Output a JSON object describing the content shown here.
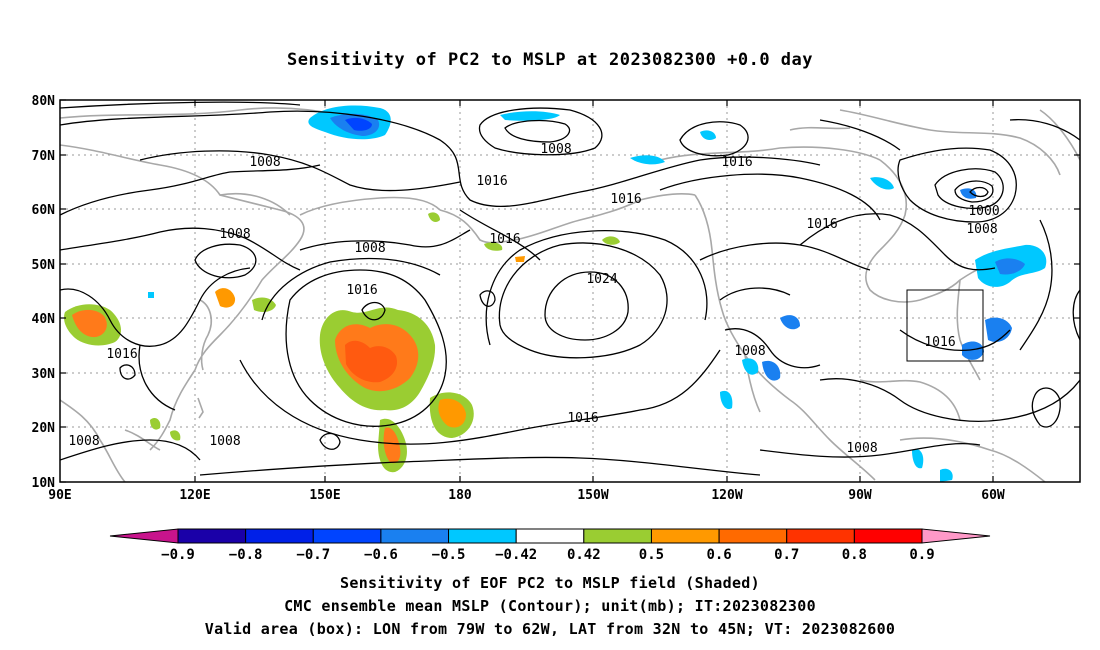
{
  "title": "Sensitivity of PC2 to MSLP at 2023082300 +0.0 day",
  "map": {
    "lon_range": [
      "90E",
      "30W"
    ],
    "lat_range": [
      "10N",
      "80N"
    ],
    "lat_labels": [
      "80N",
      "70N",
      "60N",
      "50N",
      "40N",
      "30N",
      "20N",
      "10N"
    ],
    "lon_labels": [
      "90E",
      "120E",
      "150E",
      "180",
      "150W",
      "120W",
      "90W",
      "60W"
    ],
    "gridlines": "dotted",
    "contour_labels": [
      "1008",
      "1016",
      "1016",
      "1008",
      "1016",
      "1016",
      "1016",
      "1008",
      "1008",
      "1016",
      "1024",
      "1016",
      "1016",
      "1008",
      "1008",
      "1008",
      "1000",
      "1008",
      "1016",
      "1008"
    ],
    "valid_box": {
      "lon_from": "79W",
      "lon_to": "62W",
      "lat_from": "32N",
      "lat_to": "45N"
    }
  },
  "colorbar": {
    "labels": [
      "-0.9",
      "-0.8",
      "-0.7",
      "-0.6",
      "-0.5",
      "-0.42",
      "0.42",
      "0.5",
      "0.6",
      "0.7",
      "0.8",
      "0.9"
    ],
    "colors": [
      "#1a00a8",
      "#0020e8",
      "#0044ff",
      "#1a80f0",
      "#00c8ff",
      "#ffffff",
      "#9acd32",
      "#ff9900",
      "#ff6a00",
      "#ff3300",
      "#ff0000"
    ],
    "low_extend_color": "#c8148c",
    "high_extend_color": "#ff99c8"
  },
  "captions": [
    "Sensitivity of EOF PC2 to MSLP field (Shaded)",
    "CMC ensemble mean MSLP (Contour); unit(mb); IT:2023082300",
    "Valid area (box): LON from 79W to 62W, LAT from 32N to 45N; VT: 2023082600"
  ]
}
